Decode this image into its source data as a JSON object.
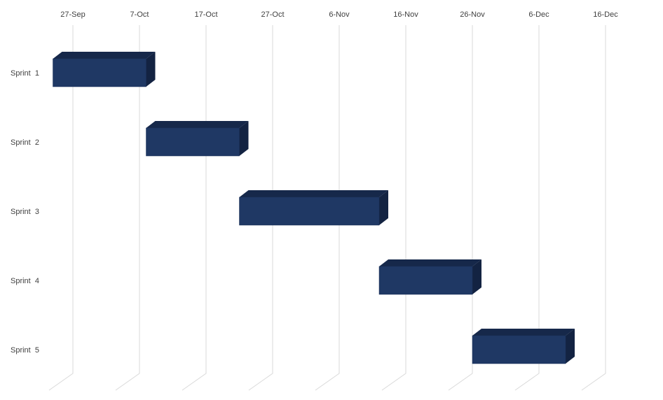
{
  "chart_data": {
    "type": "bar",
    "orientation": "horizontal",
    "style": "3d-gantt",
    "x_axis_type": "date",
    "x_ticks": [
      "27-Sep",
      "7-Oct",
      "17-Oct",
      "27-Oct",
      "6-Nov",
      "16-Nov",
      "26-Nov",
      "6-Dec",
      "16-Dec"
    ],
    "xlim": [
      "27-Sep",
      "16-Dec"
    ],
    "x_axis_position": "top",
    "categories": [
      "Sprint  1",
      "Sprint  2",
      "Sprint  3",
      "Sprint  4",
      "Sprint  5"
    ],
    "series": [
      {
        "start": [
          "24-Sep",
          "8-Oct",
          "22-Oct",
          "12-Nov",
          "26-Nov"
        ],
        "end": [
          "8-Oct",
          "22-Oct",
          "12-Nov",
          "26-Nov",
          "10-Dec"
        ]
      }
    ],
    "grid": "vertical",
    "legend": "none",
    "colors": {
      "bar_front": "#1f3864",
      "bar_top": "#16284a",
      "bar_side": "#132342",
      "gridline": "#d9d9d9",
      "text": "#404040"
    }
  }
}
